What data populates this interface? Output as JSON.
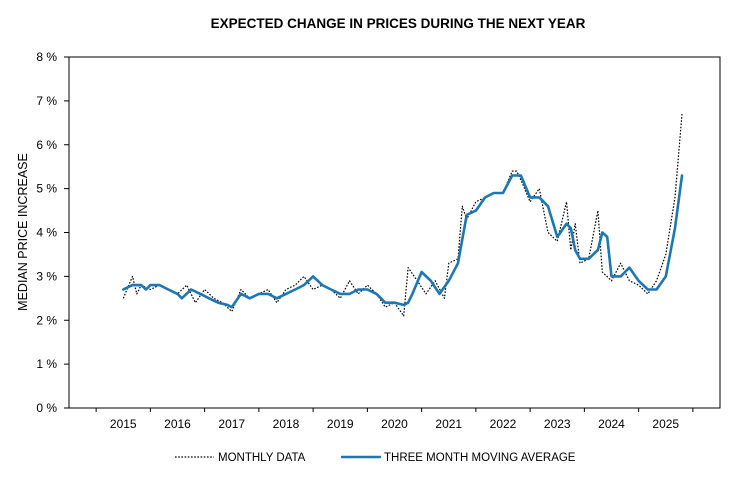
{
  "chart_data": {
    "type": "line",
    "title": "EXPECTED CHANGE IN PRICES DURING THE NEXT YEAR",
    "xlabel": "",
    "ylabel": "MEDIAN PRICE INCREASE",
    "xlim": [
      2014.0,
      2026.0
    ],
    "ylim": [
      0,
      8
    ],
    "y_ticks": [
      0,
      1,
      2,
      3,
      4,
      5,
      6,
      7,
      8
    ],
    "y_tick_labels": [
      "0 %",
      "1 %",
      "2 %",
      "3 %",
      "4 %",
      "5 %",
      "6 %",
      "7 %",
      "8 %"
    ],
    "x_tick_labels": [
      "2015",
      "2016",
      "2017",
      "2018",
      "2019",
      "2020",
      "2021",
      "2022",
      "2023",
      "2024",
      "2025"
    ],
    "grid": false,
    "legend_position": "bottom-center",
    "colors": {
      "monthly": "#000000",
      "moving_average": "#1b78b4"
    },
    "series": [
      {
        "name": "MONTHLY DATA",
        "style": "dotted",
        "x": [
          2015.0,
          2015.17,
          2015.25,
          2015.33,
          2015.5,
          2015.67,
          2015.83,
          2016.0,
          2016.17,
          2016.33,
          2016.5,
          2016.67,
          2016.83,
          2017.0,
          2017.17,
          2017.33,
          2017.5,
          2017.67,
          2017.83,
          2018.0,
          2018.17,
          2018.33,
          2018.5,
          2018.67,
          2018.83,
          2019.0,
          2019.17,
          2019.33,
          2019.5,
          2019.67,
          2019.83,
          2020.0,
          2020.17,
          2020.25,
          2020.42,
          2020.58,
          2020.75,
          2020.92,
          2021.0,
          2021.17,
          2021.25,
          2021.33,
          2021.5,
          2021.67,
          2021.83,
          2022.0,
          2022.17,
          2022.25,
          2022.33,
          2022.5,
          2022.67,
          2022.83,
          2023.0,
          2023.17,
          2023.25,
          2023.33,
          2023.42,
          2023.58,
          2023.75,
          2023.83,
          2024.0,
          2024.17,
          2024.33,
          2024.5,
          2024.67,
          2024.83,
          2025.0,
          2025.17,
          2025.3
        ],
        "values": [
          2.5,
          3.0,
          2.6,
          2.8,
          2.7,
          2.8,
          2.7,
          2.6,
          2.8,
          2.4,
          2.7,
          2.5,
          2.4,
          2.2,
          2.7,
          2.5,
          2.6,
          2.7,
          2.4,
          2.7,
          2.8,
          3.0,
          2.7,
          2.8,
          2.7,
          2.5,
          2.9,
          2.6,
          2.8,
          2.6,
          2.3,
          2.4,
          2.1,
          3.2,
          2.9,
          2.6,
          2.9,
          2.5,
          3.3,
          3.4,
          4.6,
          4.3,
          4.7,
          4.8,
          4.9,
          4.9,
          5.4,
          5.4,
          5.2,
          4.7,
          5.0,
          4.0,
          3.8,
          4.7,
          3.6,
          4.2,
          3.3,
          3.4,
          4.5,
          3.1,
          2.9,
          3.3,
          2.9,
          2.8,
          2.6,
          2.9,
          3.5,
          4.8,
          6.7
        ]
      },
      {
        "name": "THREE MONTH MOVING AVERAGE",
        "style": "solid",
        "x": [
          2015.0,
          2015.17,
          2015.33,
          2015.42,
          2015.5,
          2015.67,
          2015.83,
          2016.0,
          2016.08,
          2016.25,
          2016.42,
          2016.58,
          2016.75,
          2016.92,
          2017.0,
          2017.17,
          2017.33,
          2017.5,
          2017.67,
          2017.83,
          2018.0,
          2018.17,
          2018.33,
          2018.5,
          2018.67,
          2018.83,
          2019.0,
          2019.17,
          2019.33,
          2019.5,
          2019.67,
          2019.83,
          2020.0,
          2020.17,
          2020.25,
          2020.33,
          2020.5,
          2020.67,
          2020.83,
          2021.0,
          2021.17,
          2021.33,
          2021.5,
          2021.67,
          2021.83,
          2022.0,
          2022.17,
          2022.33,
          2022.5,
          2022.67,
          2022.83,
          2023.0,
          2023.17,
          2023.25,
          2023.33,
          2023.42,
          2023.58,
          2023.75,
          2023.83,
          2023.92,
          2024.0,
          2024.17,
          2024.33,
          2024.5,
          2024.67,
          2024.83,
          2025.0,
          2025.17,
          2025.3
        ],
        "values": [
          2.7,
          2.8,
          2.8,
          2.7,
          2.8,
          2.8,
          2.7,
          2.6,
          2.5,
          2.7,
          2.6,
          2.5,
          2.4,
          2.35,
          2.3,
          2.6,
          2.5,
          2.6,
          2.6,
          2.5,
          2.6,
          2.7,
          2.8,
          3.0,
          2.8,
          2.7,
          2.6,
          2.6,
          2.7,
          2.7,
          2.6,
          2.4,
          2.4,
          2.35,
          2.4,
          2.6,
          3.1,
          2.9,
          2.6,
          2.9,
          3.3,
          4.4,
          4.5,
          4.8,
          4.9,
          4.9,
          5.3,
          5.3,
          4.8,
          4.8,
          4.6,
          3.9,
          4.2,
          4.1,
          3.6,
          3.4,
          3.4,
          3.6,
          4.0,
          3.9,
          3.0,
          3.0,
          3.2,
          2.9,
          2.7,
          2.7,
          3.0,
          4.1,
          5.3
        ]
      }
    ]
  }
}
